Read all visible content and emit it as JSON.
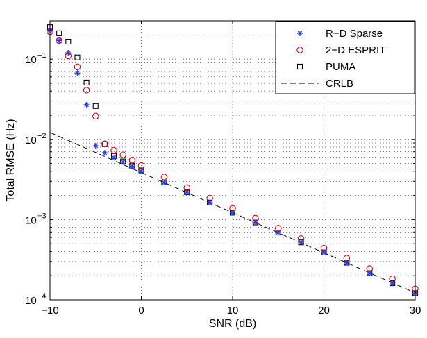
{
  "chart_data": {
    "type": "scatter",
    "xlabel": "SNR (dB)",
    "ylabel": "Total RMSE (Hz)",
    "xlim": [
      -10,
      30
    ],
    "ylim": [
      0.0001,
      0.3
    ],
    "yscale": "log",
    "grid": true,
    "legend_position": "top-right",
    "x_ticks": [
      {
        "value": -10,
        "label": "−10"
      },
      {
        "value": 0,
        "label": "0"
      },
      {
        "value": 10,
        "label": "10"
      },
      {
        "value": 20,
        "label": "20"
      },
      {
        "value": 30,
        "label": "30"
      }
    ],
    "y_ticks": [
      {
        "value": 0.0001,
        "base": "10",
        "exp": "−4"
      },
      {
        "value": 0.001,
        "base": "10",
        "exp": "−3"
      },
      {
        "value": 0.01,
        "base": "10",
        "exp": "−2"
      },
      {
        "value": 0.1,
        "base": "10",
        "exp": "−1"
      }
    ],
    "series": [
      {
        "name": "R−D Sparse",
        "marker": "asterisk",
        "color": "#1f3fff",
        "x": [
          -10,
          -9,
          -8,
          -7,
          -6,
          -5,
          -4,
          -3,
          -2,
          -1,
          0,
          2.5,
          5,
          7.5,
          10,
          12.5,
          15,
          17.5,
          20,
          22.5,
          25,
          27.5,
          30
        ],
        "y": [
          0.23,
          0.17,
          0.12,
          0.067,
          0.027,
          0.0083,
          0.0068,
          0.0059,
          0.0052,
          0.0046,
          0.004,
          0.0029,
          0.0022,
          0.00162,
          0.00122,
          0.00092,
          0.00069,
          0.00052,
          0.00039,
          0.00029,
          0.000215,
          0.000161,
          0.000121
        ]
      },
      {
        "name": "2−D ESPRIT",
        "marker": "circle",
        "color": "#e8000b",
        "x": [
          -10,
          -9,
          -8,
          -7,
          -6,
          -5,
          -4,
          -3,
          -2,
          -1,
          0,
          2.5,
          5,
          7.5,
          10,
          12.5,
          15,
          17.5,
          20,
          22.5,
          25,
          27.5,
          30
        ],
        "y": [
          0.22,
          0.17,
          0.11,
          0.08,
          0.041,
          0.0195,
          0.0088,
          0.0073,
          0.0064,
          0.0055,
          0.0047,
          0.0034,
          0.0025,
          0.00185,
          0.00138,
          0.00104,
          0.00078,
          0.00058,
          0.00044,
          0.00033,
          0.000245,
          0.000183,
          0.000137
        ]
      },
      {
        "name": "PUMA",
        "marker": "square",
        "color": "#000000",
        "x": [
          -10,
          -9,
          -8,
          -7,
          -6,
          -5,
          -4,
          -3,
          -2,
          -1,
          0,
          2.5,
          5,
          7.5,
          10,
          12.5,
          15,
          17.5,
          20,
          22.5,
          25,
          27.5,
          30
        ],
        "y": [
          0.25,
          0.21,
          0.165,
          0.105,
          0.051,
          0.026,
          0.0087,
          0.0062,
          0.0053,
          0.0047,
          0.0041,
          0.0029,
          0.0022,
          0.00163,
          0.00122,
          0.00092,
          0.00069,
          0.00052,
          0.00039,
          0.00029,
          0.000215,
          0.000161,
          0.000121
        ]
      },
      {
        "name": "CRLB",
        "marker": "dashed-line",
        "color": "#000000",
        "x": [
          -10,
          30
        ],
        "y": [
          0.0122,
          0.000122
        ]
      }
    ]
  }
}
